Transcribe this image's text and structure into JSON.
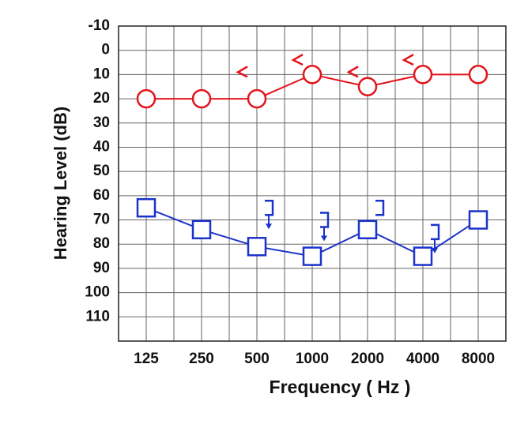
{
  "chart_data": {
    "type": "line",
    "x_label": "Frequency ( Hz )",
    "y_label": "Hearing Level (dB)",
    "categories": [
      "125",
      "250",
      "500",
      "1000",
      "2000",
      "4000",
      "8000"
    ],
    "ylim": [
      -10,
      120
    ],
    "y_inverted": true,
    "yticks": [
      -10,
      0,
      10,
      20,
      30,
      40,
      50,
      60,
      70,
      80,
      90,
      100,
      110
    ],
    "grid": true,
    "series": [
      {
        "color": "#e3141c",
        "marker": "circle",
        "line": true,
        "values": [
          20,
          20,
          20,
          10,
          15,
          10,
          10
        ]
      },
      {
        "color": "#1b33c8",
        "marker": "square",
        "line": true,
        "values": [
          65,
          74,
          81,
          85,
          74,
          85,
          70
        ]
      },
      {
        "color": "#e3141c",
        "marker": "angle-left",
        "line": false,
        "values": [
          null,
          null,
          10,
          5,
          10,
          5,
          null
        ]
      },
      {
        "color": "#1b33c8",
        "marker": "bracket-right",
        "line": false,
        "values": [
          null,
          null,
          65,
          70,
          65,
          75,
          null
        ],
        "no_response": [
          false,
          false,
          true,
          true,
          false,
          true,
          false
        ]
      }
    ]
  }
}
